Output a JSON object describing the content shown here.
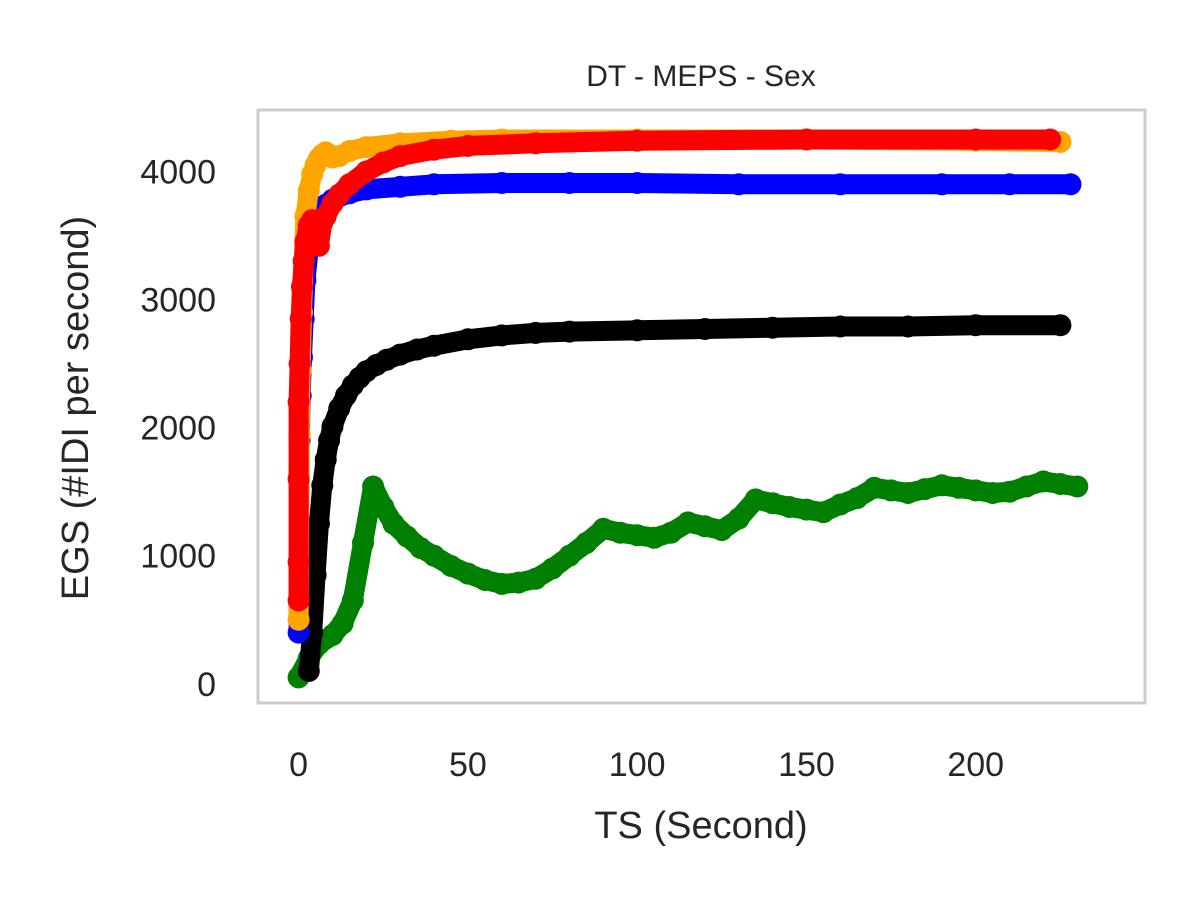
{
  "chart_data": {
    "type": "line",
    "title": "DT - MEPS - Sex",
    "xlabel": "TS (Second)",
    "ylabel": "EGS (#IDI  per second)",
    "xlim": [
      -12,
      250
    ],
    "ylim": [
      -150,
      4480
    ],
    "xticks": [
      0,
      50,
      100,
      150,
      200
    ],
    "yticks": [
      0,
      1000,
      2000,
      3000,
      4000
    ],
    "grid": false,
    "legend": "none",
    "series": [
      {
        "color": "#008000",
        "x": [
          0,
          3,
          6,
          10,
          13,
          16,
          19,
          22,
          25,
          28,
          32,
          36,
          40,
          45,
          50,
          55,
          60,
          65,
          70,
          75,
          80,
          85,
          90,
          95,
          100,
          105,
          110,
          115,
          120,
          125,
          130,
          135,
          140,
          145,
          150,
          155,
          160,
          165,
          170,
          175,
          180,
          185,
          190,
          195,
          200,
          205,
          210,
          215,
          220,
          225,
          230
        ],
        "y": [
          50,
          200,
          310,
          380,
          470,
          650,
          1100,
          1540,
          1380,
          1250,
          1150,
          1060,
          1000,
          920,
          860,
          810,
          780,
          790,
          820,
          900,
          1000,
          1100,
          1210,
          1180,
          1160,
          1140,
          1180,
          1260,
          1230,
          1200,
          1290,
          1440,
          1410,
          1380,
          1360,
          1340,
          1400,
          1450,
          1530,
          1510,
          1490,
          1520,
          1550,
          1530,
          1510,
          1490,
          1500,
          1540,
          1580,
          1560,
          1540
        ]
      },
      {
        "color": "#000000",
        "x": [
          3,
          4,
          5,
          6,
          7,
          8,
          9,
          10,
          12,
          14,
          16,
          18,
          20,
          23,
          26,
          30,
          35,
          40,
          50,
          60,
          70,
          80,
          100,
          120,
          140,
          160,
          180,
          200,
          225
        ],
        "y": [
          100,
          400,
          850,
          1250,
          1550,
          1750,
          1900,
          2010,
          2150,
          2250,
          2330,
          2390,
          2440,
          2490,
          2530,
          2570,
          2610,
          2640,
          2690,
          2720,
          2740,
          2750,
          2760,
          2770,
          2780,
          2790,
          2790,
          2800,
          2800
        ]
      },
      {
        "color": "#0000ff",
        "x": [
          0,
          0.3,
          0.6,
          1,
          1.5,
          2,
          3,
          4,
          6,
          8,
          10,
          15,
          20,
          30,
          40,
          60,
          80,
          100,
          130,
          160,
          190,
          210,
          228
        ],
        "y": [
          400,
          1900,
          2250,
          2550,
          2850,
          3150,
          3400,
          3560,
          3670,
          3740,
          3780,
          3830,
          3860,
          3880,
          3900,
          3910,
          3910,
          3910,
          3900,
          3900,
          3900,
          3900,
          3900
        ]
      },
      {
        "color": "#ffa500",
        "x": [
          0,
          0.3,
          0.6,
          1,
          1.5,
          2,
          3,
          4,
          5,
          6,
          7,
          8,
          9,
          10,
          12,
          15,
          20,
          30,
          45,
          60,
          100,
          150,
          200,
          225
        ],
        "y": [
          500,
          1950,
          2450,
          2900,
          3300,
          3650,
          3850,
          3980,
          4050,
          4100,
          4130,
          4150,
          4130,
          4110,
          4120,
          4160,
          4190,
          4220,
          4240,
          4250,
          4250,
          4250,
          4240,
          4230
        ]
      },
      {
        "color": "#ff0000",
        "x": [
          0,
          0,
          0,
          0,
          0.3,
          0.6,
          1,
          1.5,
          2,
          3,
          4,
          5,
          6,
          7,
          8,
          10,
          12,
          15,
          20,
          25,
          30,
          40,
          50,
          70,
          100,
          150,
          200,
          222
        ],
        "y": [
          650,
          950,
          1600,
          2200,
          2500,
          2850,
          3100,
          3300,
          3450,
          3580,
          3620,
          3550,
          3420,
          3600,
          3650,
          3750,
          3820,
          3900,
          4000,
          4070,
          4120,
          4170,
          4200,
          4220,
          4240,
          4250,
          4250,
          4250
        ]
      }
    ]
  }
}
